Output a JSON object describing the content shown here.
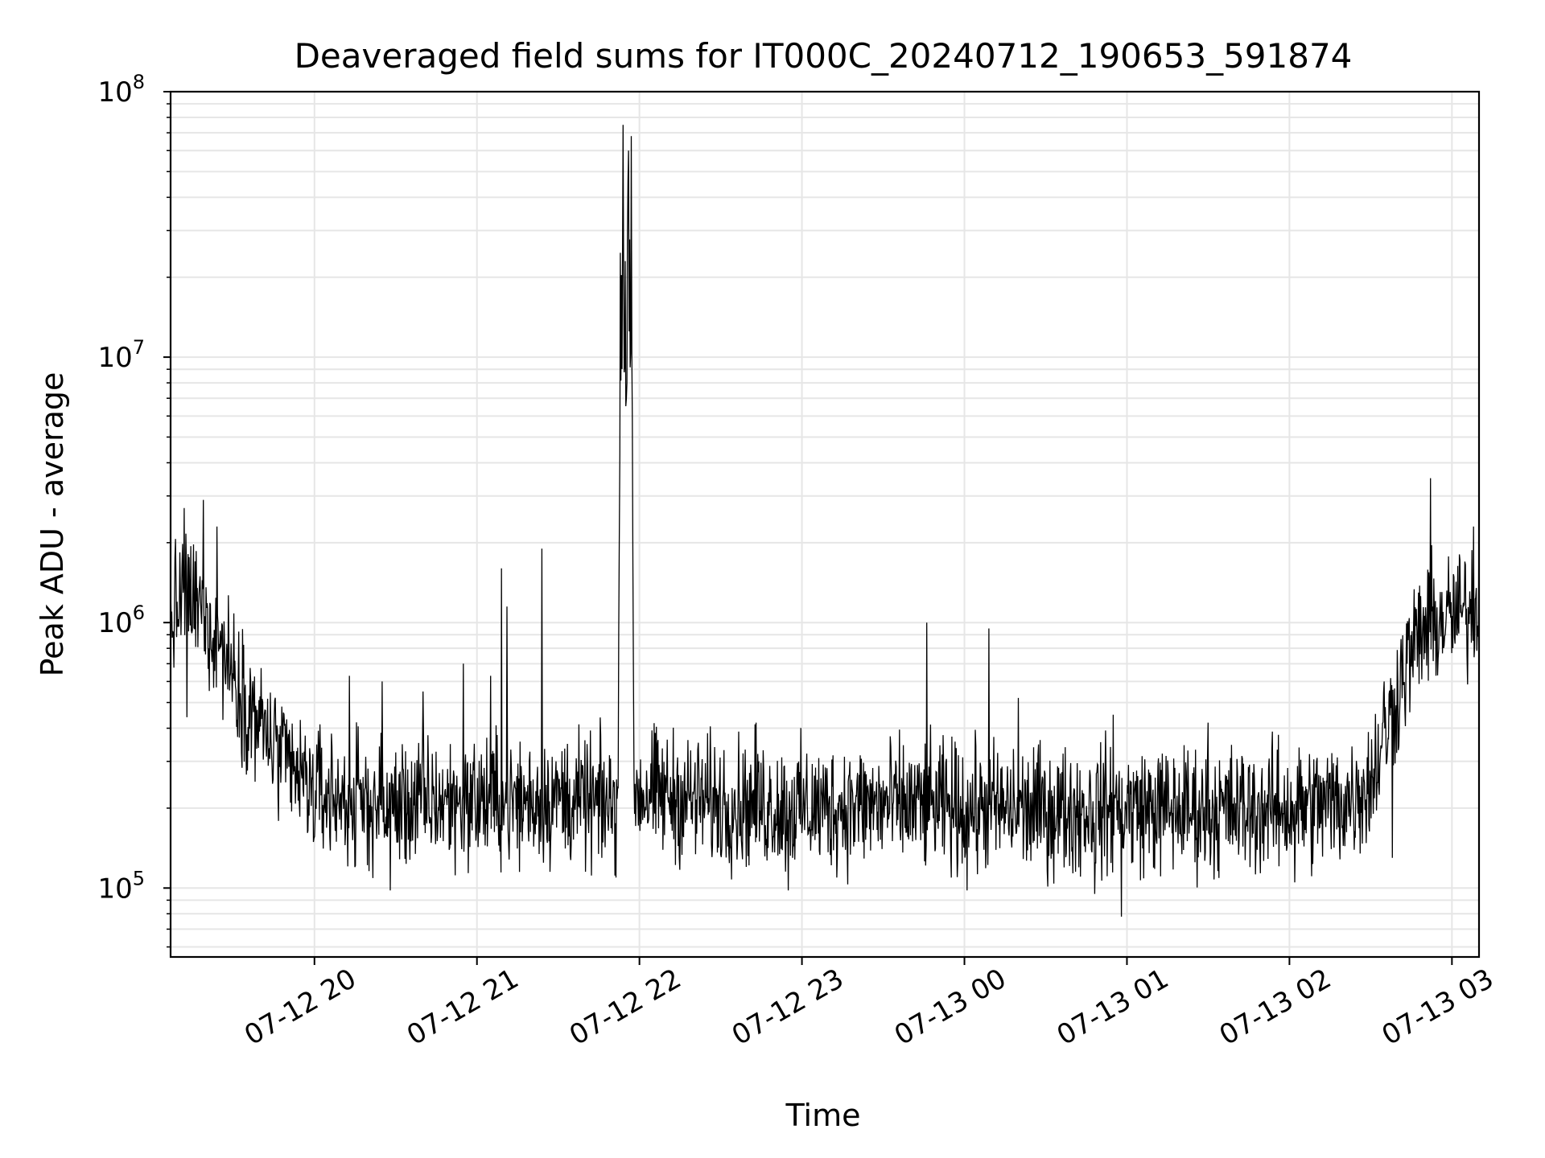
{
  "chart_data": {
    "type": "line",
    "title": "Deaveraged field sums for IT000C_20240712_190653_591874",
    "xlabel": "Time",
    "ylabel": "Peak ADU - average",
    "yscale": "log",
    "ylim": [
      55000,
      100000000
    ],
    "xlim": [
      "2024-07-12 19:06:53",
      "2024-07-13 03:10:00"
    ],
    "x_ticks": [
      {
        "at": "2024-07-12 20:00",
        "label": "07-12 20"
      },
      {
        "at": "2024-07-12 21:00",
        "label": "07-12 21"
      },
      {
        "at": "2024-07-12 22:00",
        "label": "07-12 22"
      },
      {
        "at": "2024-07-12 23:00",
        "label": "07-12 23"
      },
      {
        "at": "2024-07-13 00:00",
        "label": "07-13 00"
      },
      {
        "at": "2024-07-13 01:00",
        "label": "07-13 01"
      },
      {
        "at": "2024-07-13 02:00",
        "label": "07-13 02"
      },
      {
        "at": "2024-07-13 03:00",
        "label": "07-13 03"
      }
    ],
    "y_ticks": [
      {
        "value": 100000,
        "base": "10",
        "exp": "5"
      },
      {
        "value": 1000000,
        "base": "10",
        "exp": "6"
      },
      {
        "value": 10000000,
        "base": "10",
        "exp": "7"
      },
      {
        "value": 100000000,
        "base": "10",
        "exp": "8"
      }
    ],
    "grid": true,
    "line_color": "#000000",
    "grid_color": "#e6e6e6",
    "series": [
      {
        "x": [
          "2024-07-12 19:06:53",
          "2024-07-12 19:12",
          "2024-07-12 19:18",
          "2024-07-12 19:24",
          "2024-07-12 19:30",
          "2024-07-12 19:36",
          "2024-07-12 19:42",
          "2024-07-12 19:48",
          "2024-07-12 19:54",
          "2024-07-12 20:00",
          "2024-07-12 20:15",
          "2024-07-12 20:30",
          "2024-07-12 20:45",
          "2024-07-12 21:00",
          "2024-07-12 21:15",
          "2024-07-12 21:30",
          "2024-07-12 21:45",
          "2024-07-12 21:52",
          "2024-07-12 21:53",
          "2024-07-12 21:54",
          "2024-07-12 21:55",
          "2024-07-12 21:56",
          "2024-07-12 21:57",
          "2024-07-12 21:58",
          "2024-07-12 22:00",
          "2024-07-12 22:30",
          "2024-07-12 23:00",
          "2024-07-12 23:30",
          "2024-07-13 00:00",
          "2024-07-13 00:30",
          "2024-07-13 01:00",
          "2024-07-13 01:30",
          "2024-07-13 02:00",
          "2024-07-13 02:20",
          "2024-07-13 02:30",
          "2024-07-13 02:36",
          "2024-07-13 02:42",
          "2024-07-13 02:48",
          "2024-07-13 02:54",
          "2024-07-13 03:00",
          "2024-07-13 03:06",
          "2024-07-13 03:10"
        ],
        "values": [
          1000000,
          1300000,
          1100000,
          900000,
          650000,
          480000,
          380000,
          300000,
          260000,
          230000,
          210000,
          205000,
          210000,
          215000,
          210000,
          220000,
          205000,
          210000,
          15000000,
          20000000,
          12000000,
          30000000,
          15000000,
          240000,
          230000,
          210000,
          200000,
          205000,
          200000,
          195000,
          200000,
          195000,
          200000,
          210000,
          250000,
          400000,
          650000,
          900000,
          1000000,
          1050000,
          1100000,
          1200000
        ]
      }
    ],
    "spikes": [
      {
        "x": "2024-07-12 19:12",
        "value": 2700000
      },
      {
        "x": "2024-07-12 19:19",
        "value": 2900000
      },
      {
        "x": "2024-07-12 19:24",
        "value": 2300000
      },
      {
        "x": "2024-07-12 20:13",
        "value": 630000
      },
      {
        "x": "2024-07-12 20:25",
        "value": 600000
      },
      {
        "x": "2024-07-12 20:40",
        "value": 550000
      },
      {
        "x": "2024-07-12 20:55",
        "value": 700000
      },
      {
        "x": "2024-07-12 21:05",
        "value": 630000
      },
      {
        "x": "2024-07-12 21:09",
        "value": 1600000
      },
      {
        "x": "2024-07-12 21:11",
        "value": 1150000
      },
      {
        "x": "2024-07-12 21:24",
        "value": 1900000
      },
      {
        "x": "2024-07-12 21:54",
        "value": 75000000
      },
      {
        "x": "2024-07-12 21:56",
        "value": 60000000
      },
      {
        "x": "2024-07-12 21:57",
        "value": 68000000
      },
      {
        "x": "2024-07-12 22:43",
        "value": 420000
      },
      {
        "x": "2024-07-12 23:46",
        "value": 1000000
      },
      {
        "x": "2024-07-13 00:09",
        "value": 950000
      },
      {
        "x": "2024-07-13 00:20",
        "value": 520000
      },
      {
        "x": "2024-07-13 00:55",
        "value": 450000
      },
      {
        "x": "2024-07-13 01:30",
        "value": 420000
      },
      {
        "x": "2024-07-13 02:35",
        "value": 600000
      },
      {
        "x": "2024-07-13 02:52",
        "value": 3500000
      },
      {
        "x": "2024-07-13 03:08",
        "value": 2300000
      },
      {
        "x": "2024-07-13 03:10",
        "value": 2900000
      }
    ],
    "dips": [
      {
        "x": "2024-07-12 19:13",
        "value": 440000
      },
      {
        "x": "2024-07-12 20:15",
        "value": 120000
      },
      {
        "x": "2024-07-12 20:28",
        "value": 98000
      },
      {
        "x": "2024-07-12 21:50",
        "value": 160000
      },
      {
        "x": "2024-07-12 22:55",
        "value": 98000
      },
      {
        "x": "2024-07-13 00:01",
        "value": 98000
      },
      {
        "x": "2024-07-13 00:48",
        "value": 95000
      },
      {
        "x": "2024-07-13 00:58",
        "value": 78000
      },
      {
        "x": "2024-07-13 02:02",
        "value": 105000
      },
      {
        "x": "2024-07-13 02:38",
        "value": 130000
      }
    ]
  }
}
